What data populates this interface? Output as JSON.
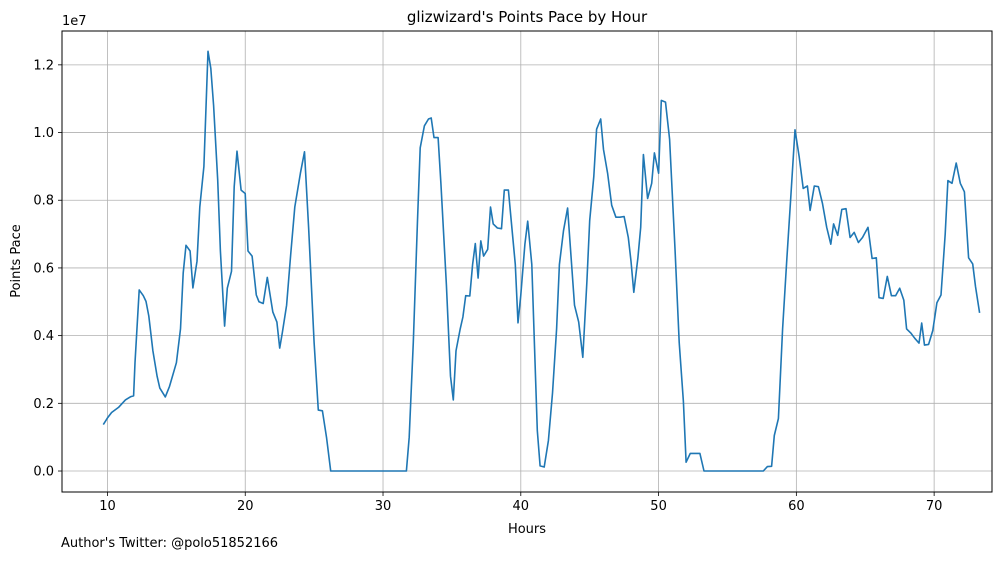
{
  "chart_data": {
    "type": "line",
    "title": "glizwizard's Points Pace by Hour",
    "xlabel": "Hours",
    "ylabel": "Points Pace",
    "y_scale_label": "1e7",
    "xlim": [
      6.7,
      74.2
    ],
    "ylim": [
      -0.062,
      1.3
    ],
    "x_ticks": [
      10,
      20,
      30,
      40,
      50,
      60,
      70
    ],
    "x_tick_labels": [
      "10",
      "20",
      "30",
      "40",
      "50",
      "60",
      "70"
    ],
    "y_ticks": [
      0.0,
      0.2,
      0.4,
      0.6,
      0.8,
      1.0,
      1.2
    ],
    "y_tick_labels": [
      "0.0",
      "0.2",
      "0.4",
      "0.6",
      "0.8",
      "1.0",
      "1.2"
    ],
    "grid": true,
    "color": "#1f77b4",
    "series": [
      {
        "name": "",
        "points": [
          [
            9.7,
            0.137
          ],
          [
            10.0,
            0.157
          ],
          [
            10.3,
            0.173
          ],
          [
            10.8,
            0.188
          ],
          [
            11.3,
            0.21
          ],
          [
            11.7,
            0.22
          ],
          [
            11.9,
            0.222
          ],
          [
            12.0,
            0.32
          ],
          [
            12.3,
            0.535
          ],
          [
            12.6,
            0.518
          ],
          [
            12.8,
            0.501
          ],
          [
            13.0,
            0.458
          ],
          [
            13.3,
            0.355
          ],
          [
            13.6,
            0.28
          ],
          [
            13.8,
            0.245
          ],
          [
            14.2,
            0.219
          ],
          [
            14.5,
            0.25
          ],
          [
            15.0,
            0.32
          ],
          [
            15.3,
            0.42
          ],
          [
            15.5,
            0.585
          ],
          [
            15.7,
            0.667
          ],
          [
            16.0,
            0.65
          ],
          [
            16.2,
            0.541
          ],
          [
            16.5,
            0.62
          ],
          [
            16.7,
            0.78
          ],
          [
            17.0,
            0.9
          ],
          [
            17.3,
            1.24
          ],
          [
            17.5,
            1.19
          ],
          [
            17.7,
            1.08
          ],
          [
            18.0,
            0.86
          ],
          [
            18.2,
            0.65
          ],
          [
            18.5,
            0.428
          ],
          [
            18.7,
            0.54
          ],
          [
            19.0,
            0.59
          ],
          [
            19.2,
            0.84
          ],
          [
            19.4,
            0.945
          ],
          [
            19.7,
            0.83
          ],
          [
            20.0,
            0.82
          ],
          [
            20.2,
            0.65
          ],
          [
            20.5,
            0.635
          ],
          [
            20.8,
            0.52
          ],
          [
            21.0,
            0.5
          ],
          [
            21.3,
            0.495
          ],
          [
            21.6,
            0.572
          ],
          [
            22.0,
            0.47
          ],
          [
            22.3,
            0.44
          ],
          [
            22.5,
            0.363
          ],
          [
            22.7,
            0.41
          ],
          [
            23.0,
            0.49
          ],
          [
            23.3,
            0.64
          ],
          [
            23.6,
            0.78
          ],
          [
            24.0,
            0.88
          ],
          [
            24.3,
            0.943
          ],
          [
            24.6,
            0.72
          ],
          [
            25.0,
            0.38
          ],
          [
            25.3,
            0.18
          ],
          [
            25.6,
            0.178
          ],
          [
            25.9,
            0.1
          ],
          [
            26.2,
            0.0
          ],
          [
            31.7,
            0.0
          ],
          [
            31.9,
            0.1
          ],
          [
            32.2,
            0.38
          ],
          [
            32.5,
            0.74
          ],
          [
            32.7,
            0.955
          ],
          [
            33.0,
            1.02
          ],
          [
            33.3,
            1.04
          ],
          [
            33.5,
            1.043
          ],
          [
            33.7,
            0.985
          ],
          [
            34.0,
            0.985
          ],
          [
            34.2,
            0.85
          ],
          [
            34.6,
            0.55
          ],
          [
            34.9,
            0.28
          ],
          [
            35.1,
            0.21
          ],
          [
            35.3,
            0.355
          ],
          [
            35.6,
            0.42
          ],
          [
            35.8,
            0.455
          ],
          [
            36.0,
            0.518
          ],
          [
            36.3,
            0.517
          ],
          [
            36.5,
            0.61
          ],
          [
            36.7,
            0.672
          ],
          [
            36.9,
            0.57
          ],
          [
            37.1,
            0.68
          ],
          [
            37.3,
            0.635
          ],
          [
            37.6,
            0.655
          ],
          [
            37.8,
            0.78
          ],
          [
            38.0,
            0.73
          ],
          [
            38.3,
            0.718
          ],
          [
            38.6,
            0.716
          ],
          [
            38.8,
            0.83
          ],
          [
            39.1,
            0.83
          ],
          [
            39.3,
            0.74
          ],
          [
            39.6,
            0.61
          ],
          [
            39.8,
            0.438
          ],
          [
            40.0,
            0.52
          ],
          [
            40.3,
            0.67
          ],
          [
            40.5,
            0.738
          ],
          [
            40.8,
            0.61
          ],
          [
            41.0,
            0.36
          ],
          [
            41.2,
            0.12
          ],
          [
            41.4,
            0.015
          ],
          [
            41.7,
            0.012
          ],
          [
            42.0,
            0.09
          ],
          [
            42.3,
            0.23
          ],
          [
            42.6,
            0.42
          ],
          [
            42.8,
            0.61
          ],
          [
            43.1,
            0.71
          ],
          [
            43.4,
            0.777
          ],
          [
            43.6,
            0.66
          ],
          [
            43.9,
            0.49
          ],
          [
            44.2,
            0.44
          ],
          [
            44.5,
            0.336
          ],
          [
            44.8,
            0.56
          ],
          [
            45.0,
            0.74
          ],
          [
            45.3,
            0.87
          ],
          [
            45.5,
            1.01
          ],
          [
            45.8,
            1.04
          ],
          [
            46.0,
            0.95
          ],
          [
            46.3,
            0.88
          ],
          [
            46.6,
            0.785
          ],
          [
            46.9,
            0.75
          ],
          [
            47.2,
            0.75
          ],
          [
            47.5,
            0.752
          ],
          [
            47.8,
            0.69
          ],
          [
            48.0,
            0.62
          ],
          [
            48.2,
            0.528
          ],
          [
            48.5,
            0.63
          ],
          [
            48.7,
            0.72
          ],
          [
            48.9,
            0.935
          ],
          [
            49.2,
            0.805
          ],
          [
            49.5,
            0.85
          ],
          [
            49.7,
            0.94
          ],
          [
            50.0,
            0.88
          ],
          [
            50.2,
            1.095
          ],
          [
            50.5,
            1.09
          ],
          [
            50.8,
            0.98
          ],
          [
            51.2,
            0.65
          ],
          [
            51.5,
            0.38
          ],
          [
            51.8,
            0.205
          ],
          [
            52.0,
            0.026
          ],
          [
            52.3,
            0.052
          ],
          [
            52.6,
            0.052
          ],
          [
            53.0,
            0.052
          ],
          [
            53.3,
            0.0
          ],
          [
            57.6,
            0.0
          ],
          [
            57.9,
            0.013
          ],
          [
            58.2,
            0.014
          ],
          [
            58.4,
            0.105
          ],
          [
            58.7,
            0.155
          ],
          [
            59.0,
            0.42
          ],
          [
            59.3,
            0.62
          ],
          [
            59.6,
            0.81
          ],
          [
            59.9,
            1.008
          ],
          [
            60.2,
            0.93
          ],
          [
            60.5,
            0.835
          ],
          [
            60.8,
            0.842
          ],
          [
            61.0,
            0.77
          ],
          [
            61.3,
            0.842
          ],
          [
            61.6,
            0.84
          ],
          [
            61.9,
            0.79
          ],
          [
            62.2,
            0.72
          ],
          [
            62.5,
            0.67
          ],
          [
            62.7,
            0.73
          ],
          [
            63.0,
            0.696
          ],
          [
            63.3,
            0.773
          ],
          [
            63.6,
            0.775
          ],
          [
            63.9,
            0.69
          ],
          [
            64.2,
            0.705
          ],
          [
            64.5,
            0.675
          ],
          [
            64.8,
            0.69
          ],
          [
            65.2,
            0.72
          ],
          [
            65.5,
            0.628
          ],
          [
            65.8,
            0.63
          ],
          [
            66.0,
            0.512
          ],
          [
            66.3,
            0.51
          ],
          [
            66.6,
            0.575
          ],
          [
            66.9,
            0.518
          ],
          [
            67.2,
            0.518
          ],
          [
            67.5,
            0.54
          ],
          [
            67.8,
            0.505
          ],
          [
            68.0,
            0.42
          ],
          [
            68.3,
            0.408
          ],
          [
            68.6,
            0.392
          ],
          [
            68.9,
            0.378
          ],
          [
            69.1,
            0.437
          ],
          [
            69.3,
            0.372
          ],
          [
            69.6,
            0.374
          ],
          [
            69.9,
            0.415
          ],
          [
            70.2,
            0.497
          ],
          [
            70.5,
            0.52
          ],
          [
            70.8,
            0.7
          ],
          [
            71.0,
            0.858
          ],
          [
            71.3,
            0.85
          ],
          [
            71.6,
            0.91
          ],
          [
            71.9,
            0.85
          ],
          [
            72.2,
            0.825
          ],
          [
            72.5,
            0.63
          ],
          [
            72.8,
            0.612
          ],
          [
            73.0,
            0.545
          ],
          [
            73.3,
            0.467
          ]
        ]
      }
    ]
  },
  "footer_text": "Author's Twitter: @polo51852166"
}
